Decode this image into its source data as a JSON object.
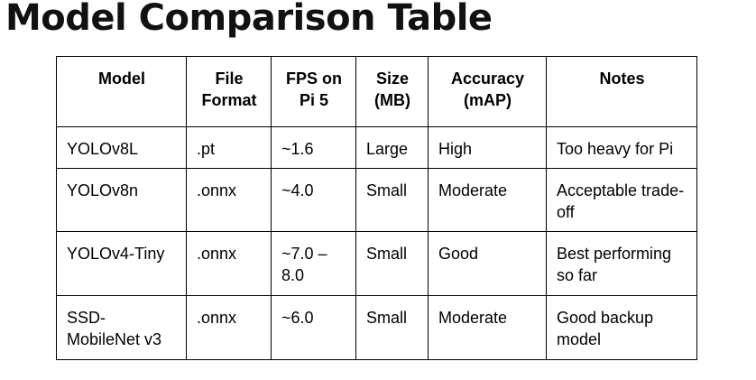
{
  "page": {
    "title": "Model Comparison Table"
  },
  "table": {
    "headers": [
      "Model",
      "File Format",
      "FPS on Pi 5",
      "Size (MB)",
      "Accuracy (mAP)",
      "Notes"
    ],
    "rows": [
      [
        "YOLOv8L",
        ".pt",
        "~1.6",
        "Large",
        "High",
        "Too heavy for Pi"
      ],
      [
        "YOLOv8n",
        ".onnx",
        "~4.0",
        "Small",
        "Moderate",
        "Acceptable trade-off"
      ],
      [
        "YOLOv4-Tiny",
        ".onnx",
        "~7.0 – 8.0",
        "Small",
        "Good",
        "Best performing so far"
      ],
      [
        "SSD-MobileNet v3",
        ".onnx",
        "~6.0",
        "Small",
        "Moderate",
        "Good backup model"
      ]
    ]
  }
}
